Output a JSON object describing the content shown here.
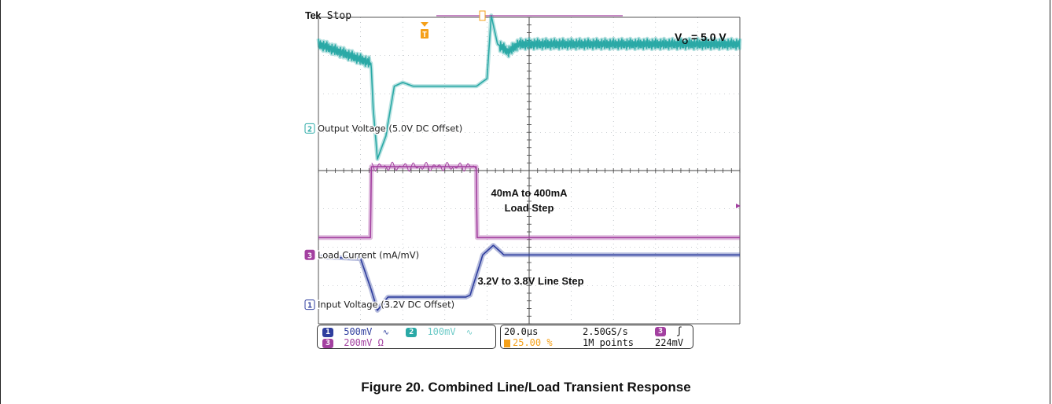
{
  "header": {
    "brand": "Tek",
    "run_state": "Stop"
  },
  "colors": {
    "ch1": "#2f3e9e",
    "ch2": "#2aa9a6",
    "ch3": "#a340a0",
    "trigger": "#f5a018",
    "grid": "#9aa0a8"
  },
  "annotations": {
    "vo_label": "V",
    "vo_sub": "O",
    "vo_value": " = 5.0 V",
    "load_step_line1": "40mA to 400mA",
    "load_step_line2": "Load Step",
    "line_step": "3.2V to 3.8V Line Step"
  },
  "status": {
    "ch1_num": "1",
    "ch1_scale": "500mV",
    "ch1_coupling": "∿",
    "ch2_num": "2",
    "ch2_scale": "100mV",
    "ch2_coupling": "∿",
    "ch3_num": "3",
    "ch3_scale": "200mV Ω",
    "timebase": "20.0µs",
    "sample_rate": "2.50GS/s",
    "trigger_pos": "25.00 %",
    "record_length": "1M points",
    "trigger_source": "3",
    "trigger_slope": "ʃ",
    "trigger_level": "224mV"
  },
  "caption": "Figure 20. Combined Line/Load Transient Response",
  "chart_data": {
    "type": "line",
    "title": "",
    "xlabel": "",
    "ylabel": "",
    "x_unit": "µs",
    "x_per_div": 20.0,
    "x_divisions": 10,
    "ylim_divisions": [
      -4,
      4
    ],
    "grid": true,
    "series": [
      {
        "name": "Output Voltage (5.0V DC Offset)",
        "channel": "2",
        "volts_per_div": "100mV",
        "marker_level_div": 1.1,
        "x": [
          0,
          25,
          26,
          28,
          32,
          36,
          40,
          45,
          50,
          75,
          80,
          82,
          85,
          90,
          95,
          100
        ],
        "y": [
          3.3,
          2.8,
          1.6,
          0.3,
          0.9,
          2.2,
          2.3,
          2.2,
          2.2,
          2.2,
          2.4,
          4.05,
          3.3,
          3.1,
          3.3,
          3.3
        ]
      },
      {
        "name": "Load Current (mA/mV)",
        "channel": "3",
        "volts_per_div": "200mV",
        "marker_level_div": -2.2,
        "x": [
          0,
          24.8,
          25,
          75,
          75.2,
          100
        ],
        "y": [
          -1.75,
          -1.75,
          0.1,
          0.1,
          -1.75,
          -1.75
        ]
      },
      {
        "name": "Input Voltage (3.2V DC Offset)",
        "channel": "1",
        "volts_per_div": "500mV",
        "marker_level_div": -3.5,
        "x": [
          0,
          20,
          25,
          28,
          33,
          40,
          70,
          72,
          78,
          83,
          88,
          100
        ],
        "y": [
          -2.25,
          -2.3,
          -3.1,
          -3.65,
          -3.3,
          -3.3,
          -3.3,
          -3.25,
          -2.2,
          -1.95,
          -2.2,
          -2.2
        ]
      }
    ]
  }
}
